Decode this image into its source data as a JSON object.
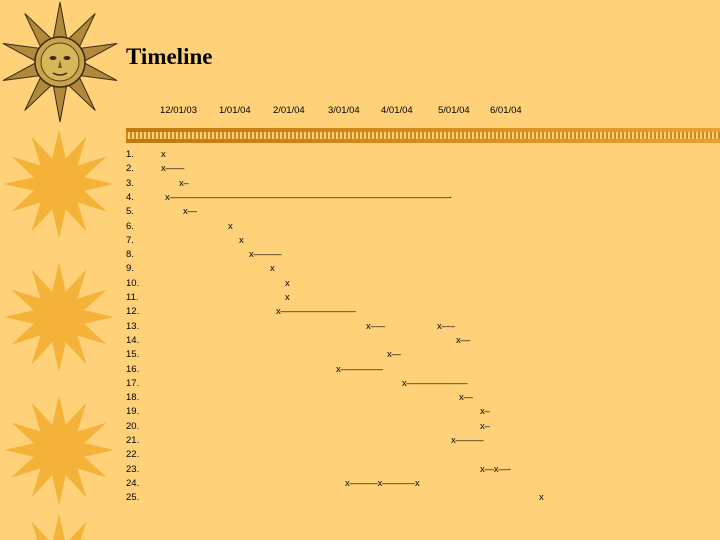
{
  "title": "Timeline",
  "dates": [
    "12/01/03",
    "1/01/04",
    "2/01/04",
    "3/01/04",
    "4/01/04",
    "5/01/04",
    "6/01/04"
  ],
  "rows": [
    {
      "num": "1.",
      "marks": [
        "x"
      ]
    },
    {
      "num": "2.",
      "marks": [
        "x——"
      ]
    },
    {
      "num": "3.",
      "marks": [
        "x–"
      ]
    },
    {
      "num": "4.",
      "marks": [
        "x——————————————————————————————-"
      ]
    },
    {
      "num": "5.",
      "marks": [
        "x—"
      ]
    },
    {
      "num": "6.",
      "marks": [
        "x"
      ]
    },
    {
      "num": "7.",
      "marks": [
        "x"
      ]
    },
    {
      "num": "8.",
      "marks": [
        "x———"
      ]
    },
    {
      "num": "9.",
      "marks": [
        "x"
      ]
    },
    {
      "num": "10.",
      "marks": [
        "x"
      ]
    },
    {
      "num": "11.",
      "marks": [
        "x"
      ]
    },
    {
      "num": "12.",
      "marks": [
        "x———————––"
      ]
    },
    {
      "num": "13.",
      "marks": [
        "x—–",
        "x–-–"
      ]
    },
    {
      "num": "14.",
      "marks": [
        "x—"
      ]
    },
    {
      "num": "15.",
      "marks": [
        "x—"
      ]
    },
    {
      "num": "16.",
      "marks": [
        "x——–——"
      ]
    },
    {
      "num": "17.",
      "marks": [
        "x————–——"
      ]
    },
    {
      "num": "18.",
      "marks": [
        "x—"
      ]
    },
    {
      "num": "19.",
      "marks": [
        "x–"
      ]
    },
    {
      "num": "20.",
      "marks": [
        "x–"
      ]
    },
    {
      "num": "21.",
      "marks": [
        "x———"
      ]
    },
    {
      "num": "22.",
      "marks": []
    },
    {
      "num": "23.",
      "marks": [
        "x—x—-"
      ]
    },
    {
      "num": "24.",
      "marks": [
        "x———x—–——x"
      ]
    },
    {
      "num": "25.",
      "marks": [
        "x"
      ]
    }
  ]
}
